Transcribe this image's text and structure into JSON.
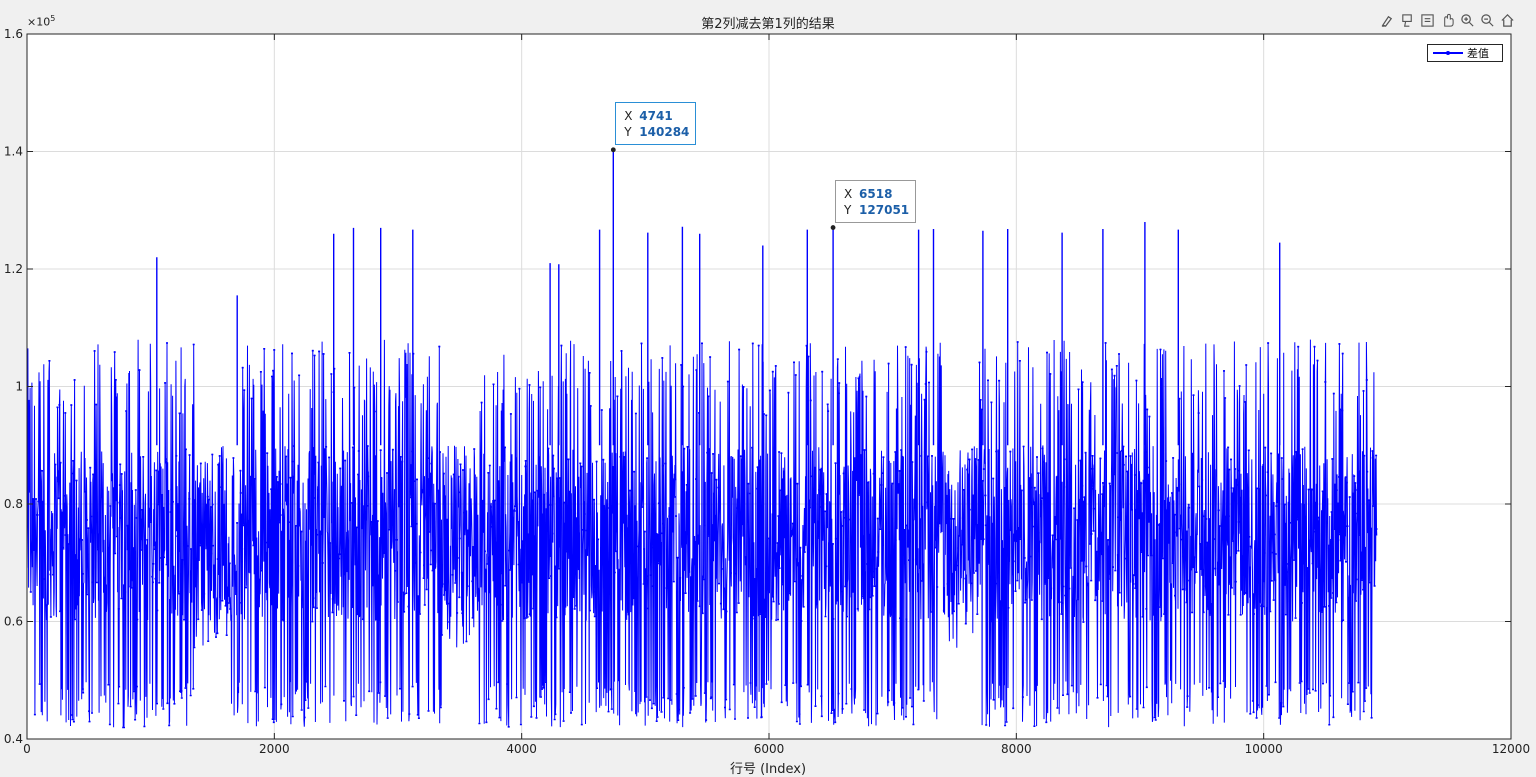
{
  "window": {
    "toolbar_icons": [
      "brush-icon",
      "data-tip-icon",
      "pan-icon",
      "rotate-icon",
      "zoom-in-icon",
      "zoom-out-icon",
      "home-icon"
    ]
  },
  "chart_data": {
    "type": "line",
    "title": "第2列减去第1列的结果",
    "xlabel": "行号 (Index)",
    "ylabel": "",
    "xlim": [
      0,
      12000
    ],
    "ylim": [
      40000,
      160000
    ],
    "y_exponent_label": "×10",
    "y_exponent_power": "5",
    "x_ticks": [
      "0",
      "2000",
      "4000",
      "6000",
      "8000",
      "10000",
      "12000"
    ],
    "y_ticks": [
      "0.4",
      "0.6",
      "0.8",
      "1",
      "1.2",
      "1.4",
      "1.6"
    ],
    "grid": true,
    "legend_position": "top-right",
    "series": [
      {
        "name": "差值",
        "color": "#0000ff",
        "marker": "dot",
        "n_points": 10917,
        "typical_range": [
          60000,
          90000
        ],
        "min": 42000,
        "dense_band_max": 108000,
        "low_density_segments": [
          [
            1350,
            1650
          ],
          [
            3350,
            3650
          ],
          [
            7400,
            7700
          ]
        ],
        "peaks": [
          {
            "x": 1050,
            "y": 122000
          },
          {
            "x": 1700,
            "y": 115500
          },
          {
            "x": 2480,
            "y": 126000
          },
          {
            "x": 2640,
            "y": 127000
          },
          {
            "x": 2860,
            "y": 127000
          },
          {
            "x": 3120,
            "y": 126700
          },
          {
            "x": 4230,
            "y": 121000
          },
          {
            "x": 4300,
            "y": 120800
          },
          {
            "x": 4630,
            "y": 126700
          },
          {
            "x": 4741,
            "y": 140284
          },
          {
            "x": 5020,
            "y": 126200
          },
          {
            "x": 5300,
            "y": 127200
          },
          {
            "x": 5440,
            "y": 126000
          },
          {
            "x": 5950,
            "y": 124000
          },
          {
            "x": 6310,
            "y": 126700
          },
          {
            "x": 6518,
            "y": 127051
          },
          {
            "x": 7210,
            "y": 126700
          },
          {
            "x": 7330,
            "y": 126800
          },
          {
            "x": 7730,
            "y": 126500
          },
          {
            "x": 7930,
            "y": 126800
          },
          {
            "x": 8370,
            "y": 126200
          },
          {
            "x": 8700,
            "y": 126800
          },
          {
            "x": 9040,
            "y": 128000
          },
          {
            "x": 9310,
            "y": 126700
          },
          {
            "x": 10130,
            "y": 124500
          }
        ]
      }
    ],
    "data_tips": [
      {
        "x_label": "X",
        "x_value": "4741",
        "y_label": "Y",
        "y_value": "140284",
        "x": 4741,
        "y": 140284,
        "selected": true
      },
      {
        "x_label": "X",
        "x_value": "6518",
        "y_label": "Y",
        "y_value": "127051",
        "x": 6518,
        "y": 127051,
        "selected": false
      }
    ]
  }
}
